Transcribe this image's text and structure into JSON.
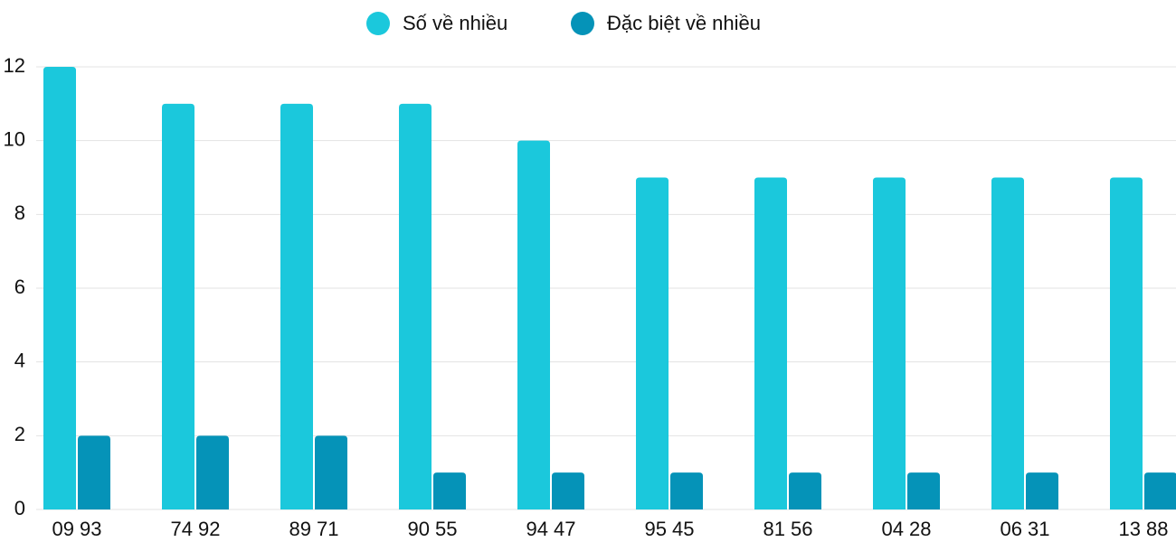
{
  "chart_data": {
    "type": "bar",
    "categories": [
      "09 93",
      "74 92",
      "89 71",
      "90 55",
      "94 47",
      "95 45",
      "81 56",
      "04 28",
      "06 31",
      "13 88"
    ],
    "series": [
      {
        "name": "Số về nhiều",
        "color": "#1bc8dc",
        "values": [
          12,
          11,
          11,
          11,
          10,
          9,
          9,
          9,
          9,
          9
        ]
      },
      {
        "name": "Đặc biệt về nhiều",
        "color": "#0593b8",
        "values": [
          2,
          2,
          2,
          1,
          1,
          1,
          1,
          1,
          1,
          1
        ]
      }
    ],
    "ylim": [
      0,
      12
    ],
    "yticks": [
      0,
      2,
      4,
      6,
      8,
      10,
      12
    ],
    "grid": true,
    "legend": "top"
  }
}
